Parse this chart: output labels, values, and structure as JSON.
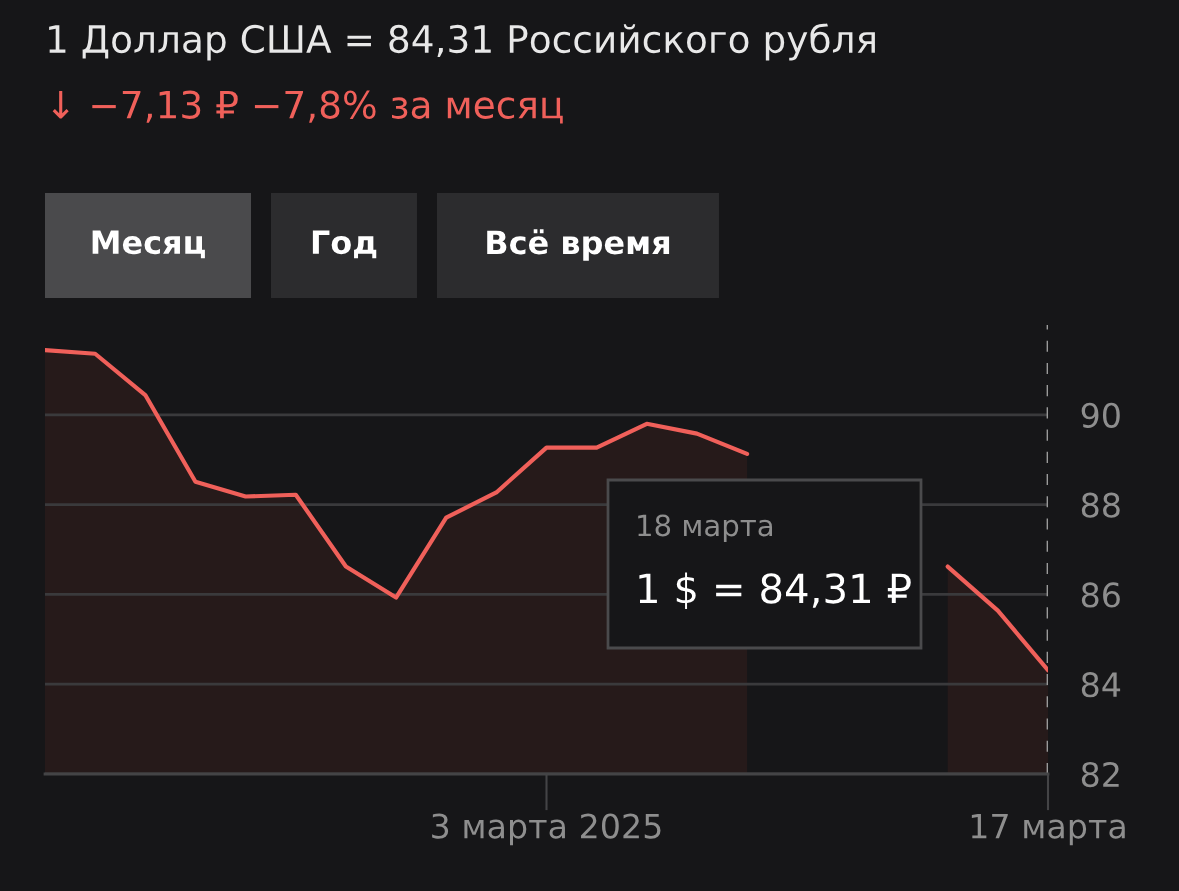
{
  "chart_data": {
    "type": "area",
    "title": "1 Доллар США = 84,31 Российского рубля",
    "subtitle": "↓ −7,13 ₽ −7,8% за месяц",
    "categories": [
      null,
      null,
      null,
      null,
      null,
      null,
      null,
      null,
      null,
      null,
      "3 марта 2025",
      null,
      null,
      null,
      null,
      null,
      null,
      null,
      null,
      null,
      "17 марта"
    ],
    "series": [
      {
        "color": "#f0605a",
        "values": [
          91.44,
          91.36,
          90.44,
          88.51,
          88.18,
          88.22,
          86.62,
          85.93,
          87.71,
          88.27,
          89.27,
          89.27,
          89.8,
          89.58,
          89.13,
          null,
          null,
          null,
          86.62,
          85.64,
          84.31
        ]
      }
    ],
    "ylim": [
      82,
      92
    ],
    "yticks": [
      82,
      84,
      86,
      88,
      90
    ],
    "grid": "y",
    "legend": false,
    "marker": "none",
    "line_style": "solid",
    "ref_lines": [
      {
        "axis": "x",
        "value": "17 марта",
        "label": null,
        "color": "#9a9a9a",
        "line_style": "dashed"
      }
    ],
    "annotations": [
      "Месяц",
      "Год",
      "Всё время",
      "18 марта",
      "1 $ = 84,31 ₽"
    ]
  }
}
